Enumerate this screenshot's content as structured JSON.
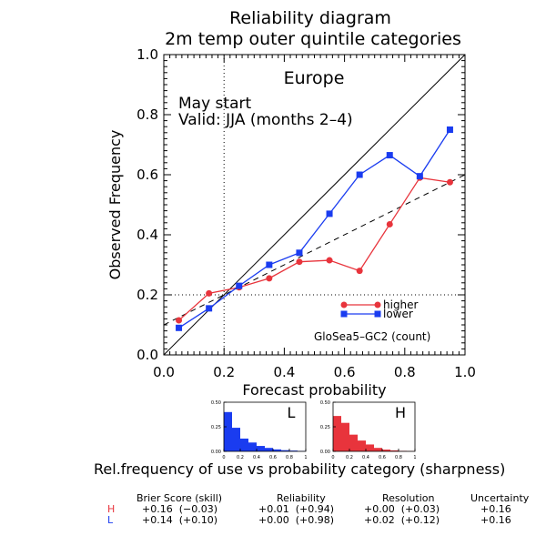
{
  "title": "Reliability diagram",
  "subtitle": "2m temp outer quintile categories",
  "colors": {
    "higher": "#e8343c",
    "lower": "#1a3cf0",
    "axis": "#000000"
  },
  "chart_data": {
    "type": "line",
    "region": "Europe",
    "annotation_start": "May start",
    "annotation_valid": "Valid: JJA (months 2–4)",
    "model_label": "GloSea5–GC2 (count)",
    "xlabel": "Forecast probability",
    "ylabel": "Observed Frequency",
    "xlim": [
      0,
      1
    ],
    "ylim": [
      0,
      1
    ],
    "x_ticks": [
      "0.0",
      "0.2",
      "0.4",
      "0.6",
      "0.8",
      "1.0"
    ],
    "y_ticks": [
      "0.0",
      "0.2",
      "0.4",
      "0.6",
      "0.8",
      "1.0"
    ],
    "climatology": 0.2,
    "legend_position": "lower-right",
    "series": [
      {
        "name": "higher",
        "marker": "circle",
        "x": [
          0.05,
          0.15,
          0.25,
          0.35,
          0.45,
          0.55,
          0.65,
          0.75,
          0.85,
          0.95
        ],
        "y": [
          0.115,
          0.205,
          0.225,
          0.255,
          0.31,
          0.315,
          0.28,
          0.435,
          0.59,
          0.575
        ]
      },
      {
        "name": "lower",
        "marker": "square",
        "x": [
          0.05,
          0.15,
          0.25,
          0.35,
          0.45,
          0.55,
          0.65,
          0.75,
          0.85,
          0.95
        ],
        "y": [
          0.09,
          0.155,
          0.23,
          0.3,
          0.34,
          0.47,
          0.6,
          0.665,
          0.595,
          0.75
        ]
      }
    ],
    "reference_lines": {
      "diagonal": [
        [
          0,
          0
        ],
        [
          1,
          1
        ]
      ],
      "skill_line": [
        [
          0,
          0.1
        ],
        [
          1,
          0.6
        ]
      ]
    },
    "sharpness": {
      "caption": "Rel.frequency of use vs probability category (sharpness)",
      "ylim": [
        0,
        0.5
      ],
      "y_ticks": [
        "0.00",
        "0.25",
        "0.50"
      ],
      "x_ticks": [
        "0",
        "0.2",
        "0.4",
        "0.6",
        "0.8",
        "1"
      ],
      "panels": [
        {
          "label": "L",
          "series": "lower",
          "values": [
            0.4,
            0.24,
            0.13,
            0.09,
            0.055,
            0.035,
            0.02,
            0.012,
            0.008,
            0.004
          ]
        },
        {
          "label": "H",
          "series": "higher",
          "values": [
            0.36,
            0.29,
            0.17,
            0.11,
            0.07,
            0.035,
            0.018,
            0.01,
            0.005,
            0.003
          ]
        }
      ]
    }
  },
  "scores": {
    "headers": [
      "Brier Score (skill)",
      "Reliability",
      "Resolution",
      "Uncertainty"
    ],
    "rows": [
      {
        "label": "H",
        "brier": "+0.16  (−0.03)",
        "reliability": "+0.01  (+0.94)",
        "resolution": "+0.00  (+0.03)",
        "uncertainty": "+0.16"
      },
      {
        "label": "L",
        "brier": "+0.14  (+0.10)",
        "reliability": "+0.00  (+0.98)",
        "resolution": "+0.02  (+0.12)",
        "uncertainty": "+0.16"
      }
    ]
  }
}
